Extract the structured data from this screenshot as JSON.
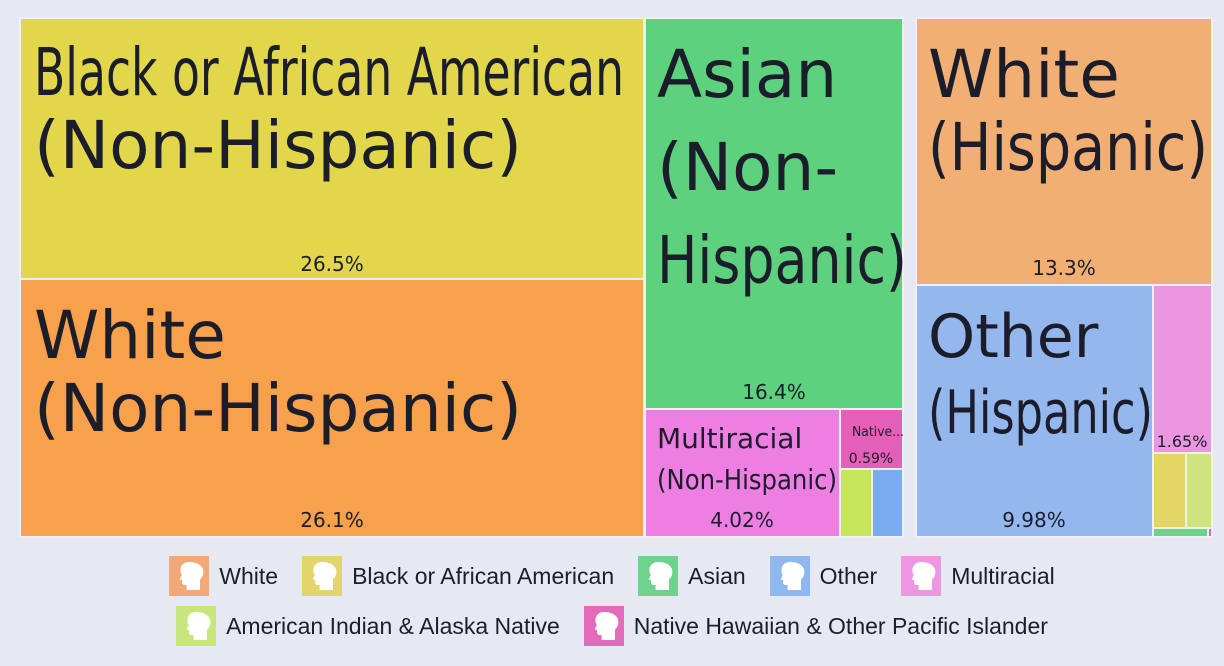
{
  "chart_data": {
    "type": "treemap",
    "title": "",
    "groups": [
      {
        "race": "Black or African American",
        "color": "#e2d64a",
        "tiles": [
          {
            "label": "Black or African American (Non-Hispanic)",
            "value": 26.5,
            "value_label": "26.5%",
            "color": "#e2d64a"
          }
        ]
      },
      {
        "race": "White",
        "color": "#f8a14c",
        "tiles": [
          {
            "label": "White (Non-Hispanic)",
            "value": 26.1,
            "value_label": "26.1%",
            "color": "#f8a14c"
          },
          {
            "label": "White (Hispanic)",
            "value": 13.3,
            "value_label": "13.3%",
            "color": "#f2af74"
          }
        ]
      },
      {
        "race": "Asian",
        "color": "#5dd17e",
        "tiles": [
          {
            "label": "Asian (Non-Hispanic)",
            "value": 16.4,
            "value_label": "16.4%",
            "color": "#5dd17e"
          }
        ]
      },
      {
        "race": "Multiracial",
        "color": "#ee7fe2",
        "tiles": [
          {
            "label": "Multiracial (Non-Hispanic)",
            "value": 4.02,
            "value_label": "4.02%",
            "color": "#ee7fe2"
          },
          {
            "label": "",
            "value": 1.65,
            "value_label": "1.65%",
            "color": "#ec96e2"
          }
        ]
      },
      {
        "race": "Native Hawaiian & Other Pacific Islander",
        "color": "#e45fb8",
        "tiles": [
          {
            "label": "Native...",
            "value": 0.59,
            "value_label": "0.59%",
            "color": "#e45fb8"
          },
          {
            "label": "",
            "value": 0.02,
            "value_label": "",
            "color": "#e45fb8"
          }
        ]
      },
      {
        "race": "Other",
        "color": "#94b8ee",
        "tiles": [
          {
            "label": "Other (Hispanic)",
            "value": 9.98,
            "value_label": "9.98%",
            "color": "#94b8ee"
          },
          {
            "label": "",
            "value": 0.38,
            "value_label": "",
            "color": "#7aaaf0"
          }
        ]
      },
      {
        "race": "American Indian & Alaska Native",
        "color": "#c6e55a",
        "tiles": [
          {
            "label": "",
            "value": 0.38,
            "value_label": "",
            "color": "#c6e55a"
          },
          {
            "label": "",
            "value": 0.36,
            "value_label": "",
            "color": "#cfe47c"
          },
          {
            "label": "",
            "value": 0.12,
            "value_label": "",
            "color": "#6dd489"
          }
        ]
      },
      {
        "race": "Black or African American (Hispanic)",
        "color": "#e2d564",
        "tiles": [
          {
            "label": "",
            "value": 0.33,
            "value_label": "",
            "color": "#e2d564"
          }
        ]
      }
    ],
    "legend": [
      {
        "label": "White",
        "color": "#f2a977"
      },
      {
        "label": "Black or African American",
        "color": "#e2d56a"
      },
      {
        "label": "Asian",
        "color": "#6fd28f"
      },
      {
        "label": "Other",
        "color": "#8eb8ee"
      },
      {
        "label": "Multiracial",
        "color": "#ee96e0"
      },
      {
        "label": "American Indian & Alaska Native",
        "color": "#c9e67c"
      },
      {
        "label": "Native Hawaiian & Other Pacific Islander",
        "color": "#e46bbb"
      }
    ],
    "legend_placement": "bottom",
    "legend_icon": "person-head-icon"
  }
}
